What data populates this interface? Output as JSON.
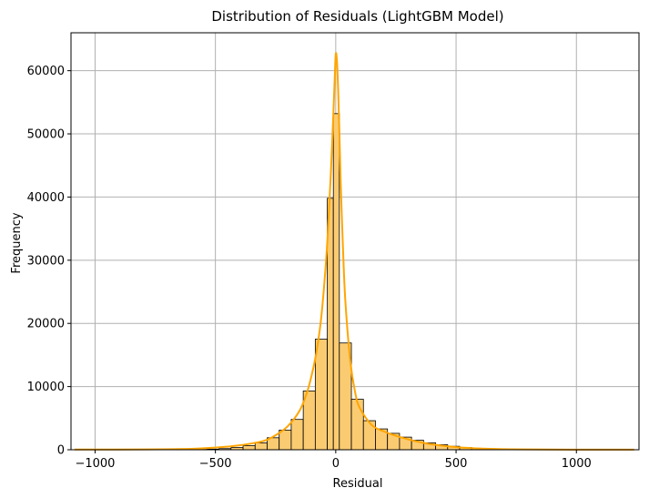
{
  "chart_data": {
    "type": "bar",
    "subtype": "histogram-with-kde",
    "title": "Distribution of Residuals (LightGBM Model)",
    "xlabel": "Residual",
    "ylabel": "Frequency",
    "xlim": [
      -1100,
      1260
    ],
    "ylim": [
      0,
      66000
    ],
    "xticks": [
      -1000,
      -500,
      0,
      500,
      1000
    ],
    "xtick_labels": [
      "−1000",
      "−500",
      "0",
      "500",
      "1000"
    ],
    "yticks": [
      0,
      10000,
      20000,
      30000,
      40000,
      50000,
      60000
    ],
    "ytick_labels": [
      "0",
      "10000",
      "20000",
      "30000",
      "40000",
      "50000",
      "60000"
    ],
    "grid": true,
    "bar_color": "#fbcb72",
    "kde_color": "#ffa500",
    "bins": [
      {
        "x0": -1085,
        "x1": -1035,
        "count": 10
      },
      {
        "x0": -1035,
        "x1": -985,
        "count": 10
      },
      {
        "x0": -985,
        "x1": -935,
        "count": 10
      },
      {
        "x0": -935,
        "x1": -885,
        "count": 10
      },
      {
        "x0": -885,
        "x1": -835,
        "count": 10
      },
      {
        "x0": -835,
        "x1": -785,
        "count": 10
      },
      {
        "x0": -785,
        "x1": -735,
        "count": 15
      },
      {
        "x0": -735,
        "x1": -685,
        "count": 20
      },
      {
        "x0": -685,
        "x1": -635,
        "count": 25
      },
      {
        "x0": -635,
        "x1": -585,
        "count": 40
      },
      {
        "x0": -585,
        "x1": -535,
        "count": 60
      },
      {
        "x0": -535,
        "x1": -485,
        "count": 100
      },
      {
        "x0": -485,
        "x1": -435,
        "count": 180
      },
      {
        "x0": -435,
        "x1": -385,
        "count": 350
      },
      {
        "x0": -385,
        "x1": -335,
        "count": 650
      },
      {
        "x0": -335,
        "x1": -285,
        "count": 1100
      },
      {
        "x0": -285,
        "x1": -235,
        "count": 1900
      },
      {
        "x0": -235,
        "x1": -185,
        "count": 3100
      },
      {
        "x0": -185,
        "x1": -135,
        "count": 4800
      },
      {
        "x0": -135,
        "x1": -85,
        "count": 9300
      },
      {
        "x0": -85,
        "x1": -35,
        "count": 17500
      },
      {
        "x0": -35,
        "x1": -10,
        "count": 39800
      },
      {
        "x0": -10,
        "x1": 15,
        "count": 53200
      },
      {
        "x0": 15,
        "x1": 65,
        "count": 16900
      },
      {
        "x0": 65,
        "x1": 115,
        "count": 8000
      },
      {
        "x0": 115,
        "x1": 165,
        "count": 4600
      },
      {
        "x0": 165,
        "x1": 215,
        "count": 3300
      },
      {
        "x0": 215,
        "x1": 265,
        "count": 2600
      },
      {
        "x0": 265,
        "x1": 315,
        "count": 2000
      },
      {
        "x0": 315,
        "x1": 365,
        "count": 1500
      },
      {
        "x0": 365,
        "x1": 415,
        "count": 1100
      },
      {
        "x0": 415,
        "x1": 465,
        "count": 800
      },
      {
        "x0": 465,
        "x1": 515,
        "count": 550
      },
      {
        "x0": 515,
        "x1": 565,
        "count": 350
      },
      {
        "x0": 565,
        "x1": 615,
        "count": 220
      },
      {
        "x0": 615,
        "x1": 665,
        "count": 140
      },
      {
        "x0": 665,
        "x1": 715,
        "count": 90
      },
      {
        "x0": 715,
        "x1": 765,
        "count": 60
      },
      {
        "x0": 765,
        "x1": 815,
        "count": 40
      },
      {
        "x0": 815,
        "x1": 865,
        "count": 30
      },
      {
        "x0": 865,
        "x1": 915,
        "count": 20
      },
      {
        "x0": 915,
        "x1": 965,
        "count": 15
      },
      {
        "x0": 965,
        "x1": 1015,
        "count": 12
      },
      {
        "x0": 1015,
        "x1": 1065,
        "count": 10
      },
      {
        "x0": 1065,
        "x1": 1115,
        "count": 10
      },
      {
        "x0": 1115,
        "x1": 1165,
        "count": 10
      },
      {
        "x0": 1165,
        "x1": 1215,
        "count": 10
      },
      {
        "x0": 1215,
        "x1": 1240,
        "count": 10
      }
    ],
    "kde": {
      "x": [
        -1085,
        -800,
        -600,
        -500,
        -400,
        -300,
        -250,
        -200,
        -150,
        -120,
        -100,
        -80,
        -60,
        -40,
        -30,
        -20,
        -10,
        -5,
        0,
        5,
        10,
        15,
        20,
        30,
        40,
        60,
        80,
        100,
        150,
        200,
        250,
        300,
        350,
        400,
        500,
        600,
        700,
        800,
        1000,
        1240
      ],
      "y": [
        30,
        60,
        150,
        350,
        700,
        1400,
        2300,
        3700,
        6200,
        9000,
        11800,
        15500,
        21000,
        30000,
        36500,
        44000,
        53000,
        58000,
        62600,
        61500,
        57000,
        50500,
        43000,
        32000,
        23500,
        14200,
        9200,
        6600,
        3900,
        2900,
        2200,
        1650,
        1200,
        850,
        420,
        190,
        90,
        50,
        25,
        15
      ]
    }
  }
}
